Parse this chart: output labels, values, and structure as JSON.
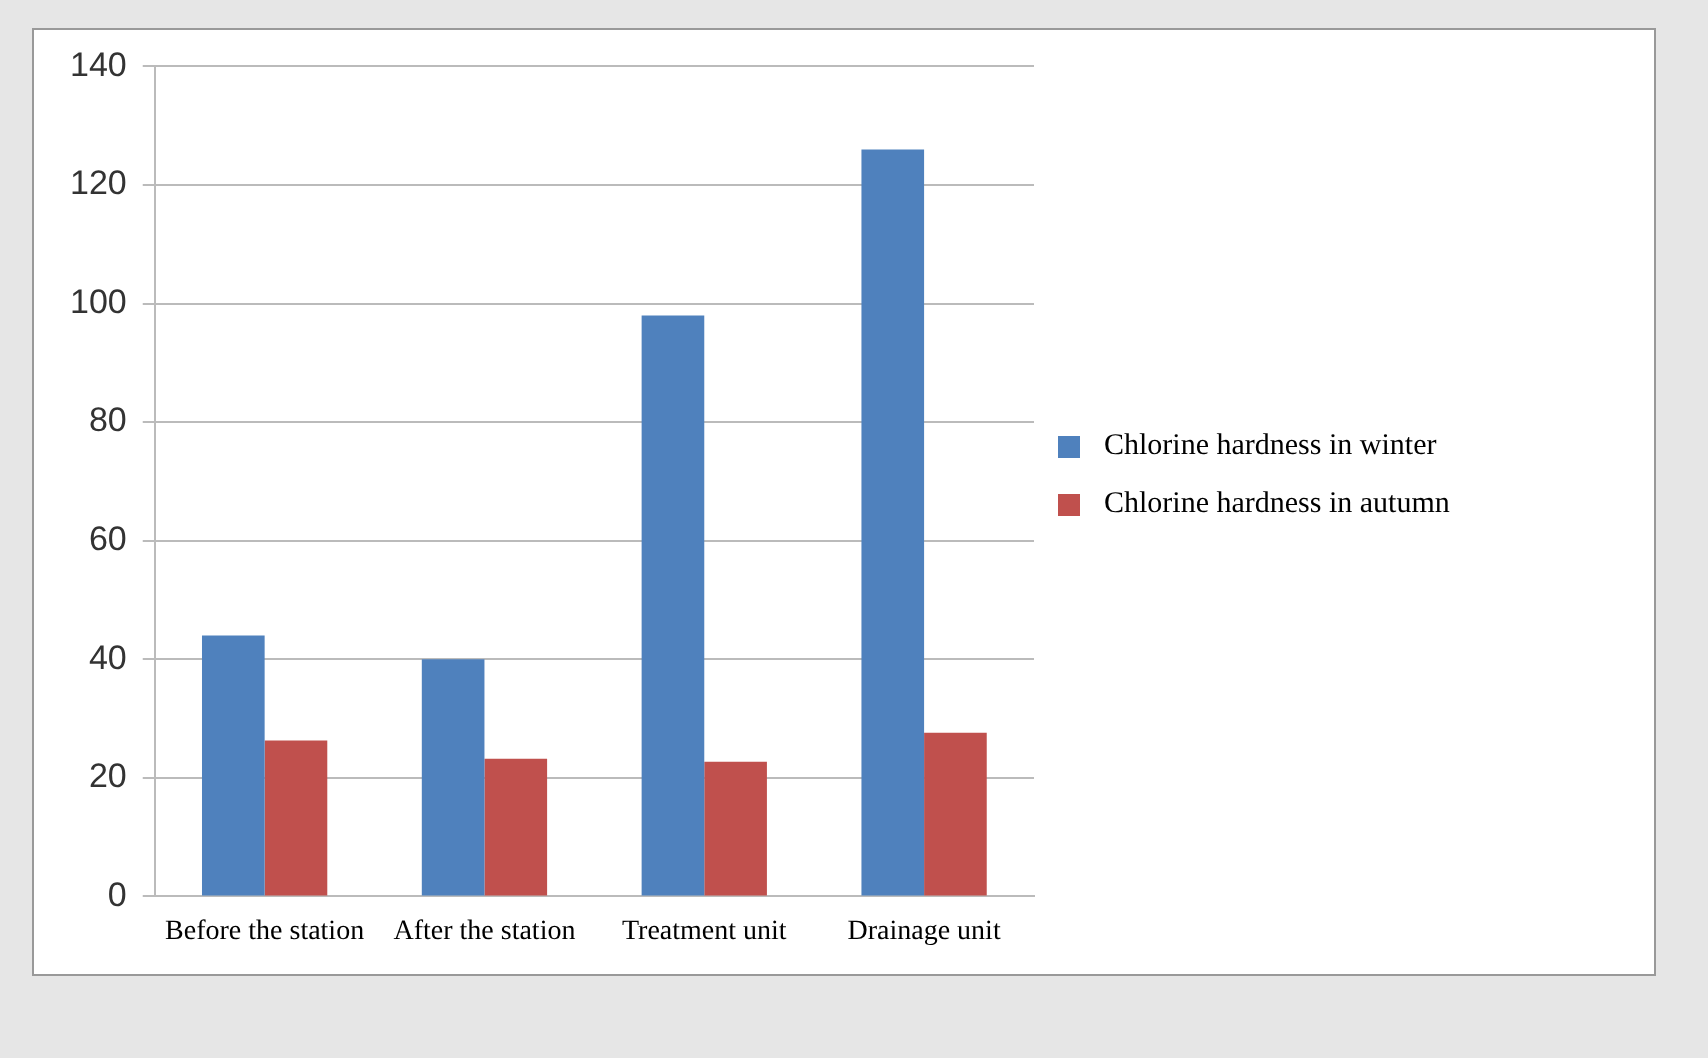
{
  "chart_data": {
    "type": "bar",
    "categories": [
      "Before the station",
      "After the station",
      "Treatment unit",
      "Drainage unit"
    ],
    "series": [
      {
        "name": "Chlorine hardness in winter",
        "color": "#4f81bd",
        "values": [
          44,
          40,
          98,
          126
        ]
      },
      {
        "name": "Chlorine hardness in autumn",
        "color": "#c0504d",
        "values": [
          26.3,
          23.2,
          22.7,
          27.6
        ]
      }
    ],
    "ylim": [
      0,
      140
    ],
    "yticks": [
      0,
      20,
      40,
      60,
      80,
      100,
      120,
      140
    ],
    "grid": "y",
    "legend": "right"
  }
}
